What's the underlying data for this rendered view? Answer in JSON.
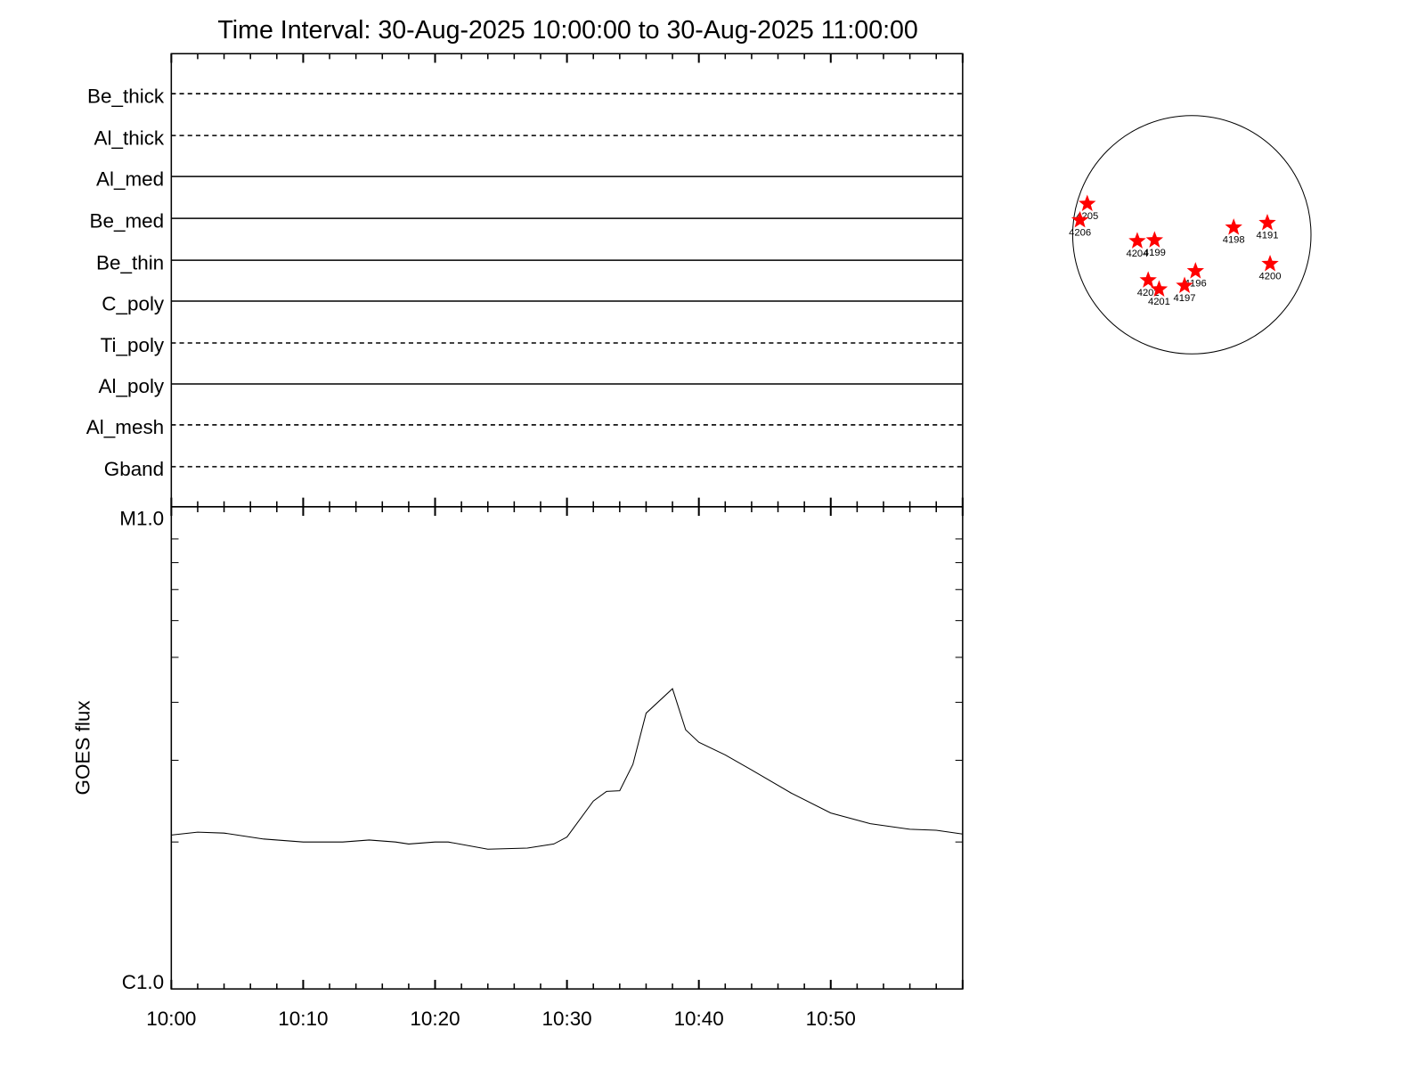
{
  "chart_data": [
    {
      "type": "table",
      "title": "Time Interval: 30-Aug-2025 10:00:00 to 30-Aug-2025 11:00:00",
      "channels": [
        {
          "name": "Be_thick",
          "style": "dashed"
        },
        {
          "name": "Al_thick",
          "style": "dashed"
        },
        {
          "name": "Al_med",
          "style": "solid"
        },
        {
          "name": "Be_med",
          "style": "solid"
        },
        {
          "name": "Be_thin",
          "style": "solid"
        },
        {
          "name": "C_poly",
          "style": "solid"
        },
        {
          "name": "Ti_poly",
          "style": "dashed"
        },
        {
          "name": "Al_poly",
          "style": "solid"
        },
        {
          "name": "Al_mesh",
          "style": "dashed"
        },
        {
          "name": "Gband",
          "style": "dashed"
        }
      ]
    },
    {
      "type": "line",
      "ylabel": "GOES flux",
      "yscale": "log",
      "ylim": [
        1e-06,
        1e-05
      ],
      "ytick_labels": [
        "C1.0",
        "M1.0"
      ],
      "xlim": [
        "10:00",
        "11:00"
      ],
      "xtick_labels": [
        "10:00",
        "10:10",
        "10:20",
        "10:30",
        "10:40",
        "10:50"
      ],
      "color": "#000000",
      "x": [
        "10:00",
        "10:02",
        "10:04",
        "10:07",
        "10:10",
        "10:13",
        "10:15",
        "10:17",
        "10:18",
        "10:20",
        "10:21",
        "10:24",
        "10:27",
        "10:29",
        "10:30",
        "10:32",
        "10:33",
        "10:34",
        "10:35",
        "10:36",
        "10:38",
        "10:39",
        "10:40",
        "10:42",
        "10:44",
        "10:47",
        "10:50",
        "10:53",
        "10:56",
        "10:58",
        "11:00"
      ],
      "y": [
        2.07e-06,
        2.1e-06,
        2.09e-06,
        2.03e-06,
        2e-06,
        2e-06,
        2.02e-06,
        2e-06,
        1.98e-06,
        2e-06,
        2e-06,
        1.93e-06,
        1.94e-06,
        1.98e-06,
        2.05e-06,
        2.45e-06,
        2.57e-06,
        2.58e-06,
        2.94e-06,
        3.79e-06,
        4.28e-06,
        3.49e-06,
        3.28e-06,
        3.08e-06,
        2.86e-06,
        2.55e-06,
        2.31e-06,
        2.19e-06,
        2.13e-06,
        2.12e-06,
        2.08e-06
      ]
    },
    {
      "type": "scatter",
      "marker_color": "#ff0000",
      "marker": "star",
      "regions": [
        "4205",
        "4206",
        "4204",
        "4199",
        "4198",
        "4191",
        "4200",
        "4196",
        "4197",
        "4202",
        "4201"
      ]
    }
  ]
}
